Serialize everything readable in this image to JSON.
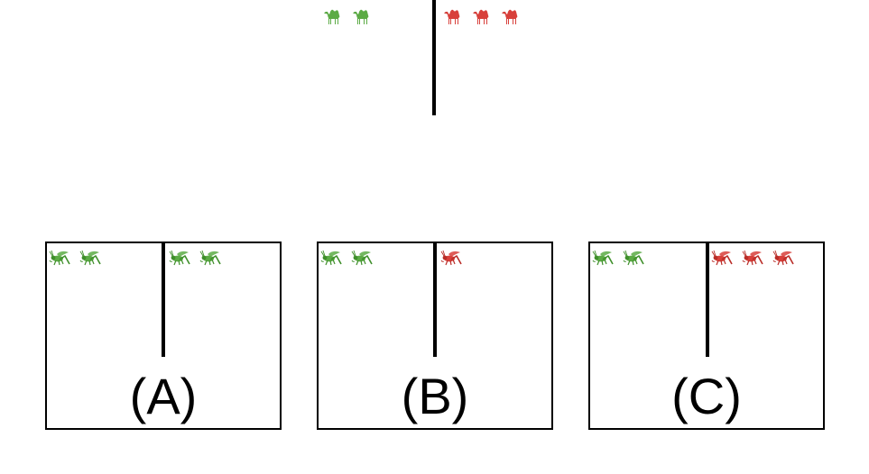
{
  "colors": {
    "green": "#5cab45",
    "green_dark": "#3f8f2b",
    "red": "#d8403b",
    "red_dark": "#b92d28",
    "line": "#000000"
  },
  "reference": {
    "left_icons": {
      "icon": "camel-icon",
      "color": "green",
      "count": 2
    },
    "right_icons": {
      "icon": "camel-icon",
      "color": "red",
      "count": 3
    }
  },
  "options": [
    {
      "label": "(A)",
      "left_icons": {
        "icon": "grasshopper-icon",
        "color": "green",
        "count": 2
      },
      "right_icons": {
        "icon": "grasshopper-icon",
        "color": "green",
        "count": 2
      }
    },
    {
      "label": "(B)",
      "left_icons": {
        "icon": "grasshopper-icon",
        "color": "green",
        "count": 2
      },
      "right_icons": {
        "icon": "grasshopper-icon",
        "color": "red",
        "count": 1
      }
    },
    {
      "label": "(C)",
      "left_icons": {
        "icon": "grasshopper-icon",
        "color": "green",
        "count": 2
      },
      "right_icons": {
        "icon": "grasshopper-icon",
        "color": "red",
        "count": 3
      }
    }
  ]
}
